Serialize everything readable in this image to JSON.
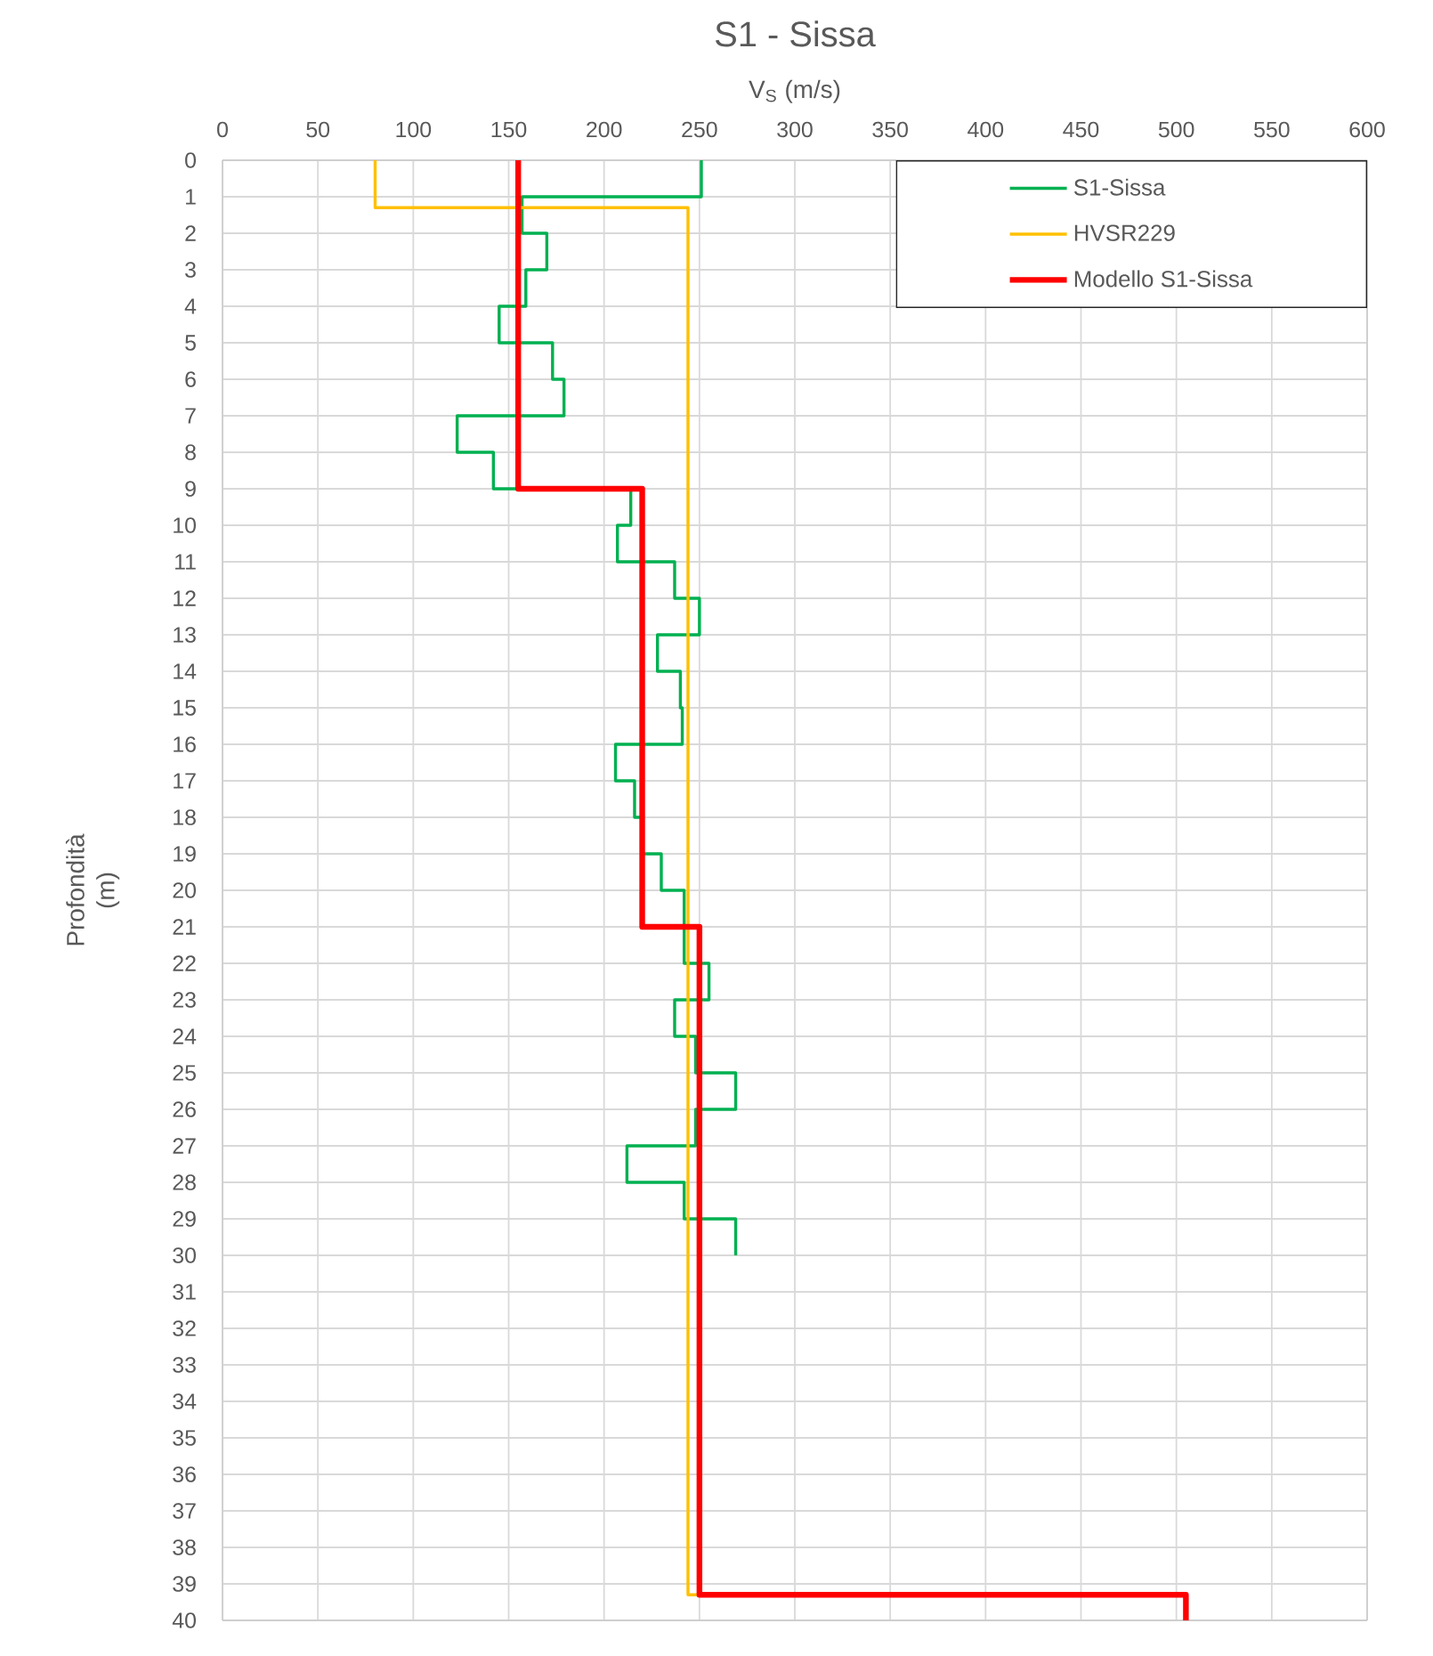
{
  "chart_data": {
    "type": "line",
    "title": "S1 - Sissa",
    "xlabel": "V$_{S}$ (m/s)",
    "ylabel": "Profondità (m)",
    "xlim": [
      0,
      600
    ],
    "xticks": [
      0,
      50,
      100,
      150,
      200,
      250,
      300,
      350,
      400,
      450,
      500,
      550,
      600
    ],
    "ylim": [
      40,
      0
    ],
    "yticks": [
      0,
      1,
      2,
      3,
      4,
      5,
      6,
      7,
      8,
      9,
      10,
      11,
      12,
      13,
      14,
      15,
      16,
      17,
      18,
      19,
      20,
      21,
      22,
      23,
      24,
      25,
      26,
      27,
      28,
      29,
      30,
      31,
      32,
      33,
      34,
      35,
      36,
      37,
      38,
      39,
      40
    ],
    "grid": true,
    "legend": "top right",
    "marker": "none",
    "line_style": "solid",
    "series": [
      {
        "name": "S1-Sissa",
        "color": "#00b050",
        "x": [
          251,
          251,
          157,
          157,
          170,
          170,
          159,
          159,
          145,
          145,
          173,
          173,
          179,
          179,
          123,
          123,
          142,
          142,
          214,
          214,
          207,
          207,
          237,
          237,
          250,
          250,
          228,
          228,
          240,
          240,
          241,
          241,
          206,
          206,
          216,
          216,
          220,
          220,
          230,
          230,
          242,
          242,
          255,
          255,
          237,
          237,
          248,
          248,
          269,
          269,
          248,
          248,
          212,
          212,
          242,
          242,
          269,
          269
        ],
        "values": [
          0,
          1,
          1,
          2,
          2,
          3,
          3,
          4,
          4,
          5,
          5,
          6,
          6,
          7,
          7,
          8,
          8,
          9,
          9,
          10,
          10,
          11,
          11,
          12,
          12,
          13,
          13,
          14,
          14,
          15,
          15,
          16,
          16,
          17,
          17,
          18,
          18,
          19,
          19,
          20,
          20,
          22,
          22,
          23,
          23,
          24,
          24,
          25,
          25,
          26,
          26,
          27,
          27,
          28,
          28,
          29,
          29,
          30
        ]
      },
      {
        "name": "HVSR229",
        "color": "#ffc000",
        "x": [
          80,
          80,
          244,
          244,
          249
        ],
        "values": [
          0,
          1.3,
          1.3,
          39.3,
          39.3
        ]
      },
      {
        "name": "Modello S1-Sissa",
        "color": "#ff0000",
        "x": [
          155,
          155,
          220,
          220,
          250,
          250,
          505,
          505
        ],
        "values": [
          0,
          9,
          9,
          21,
          21,
          39.3,
          39.3,
          40
        ]
      }
    ]
  }
}
